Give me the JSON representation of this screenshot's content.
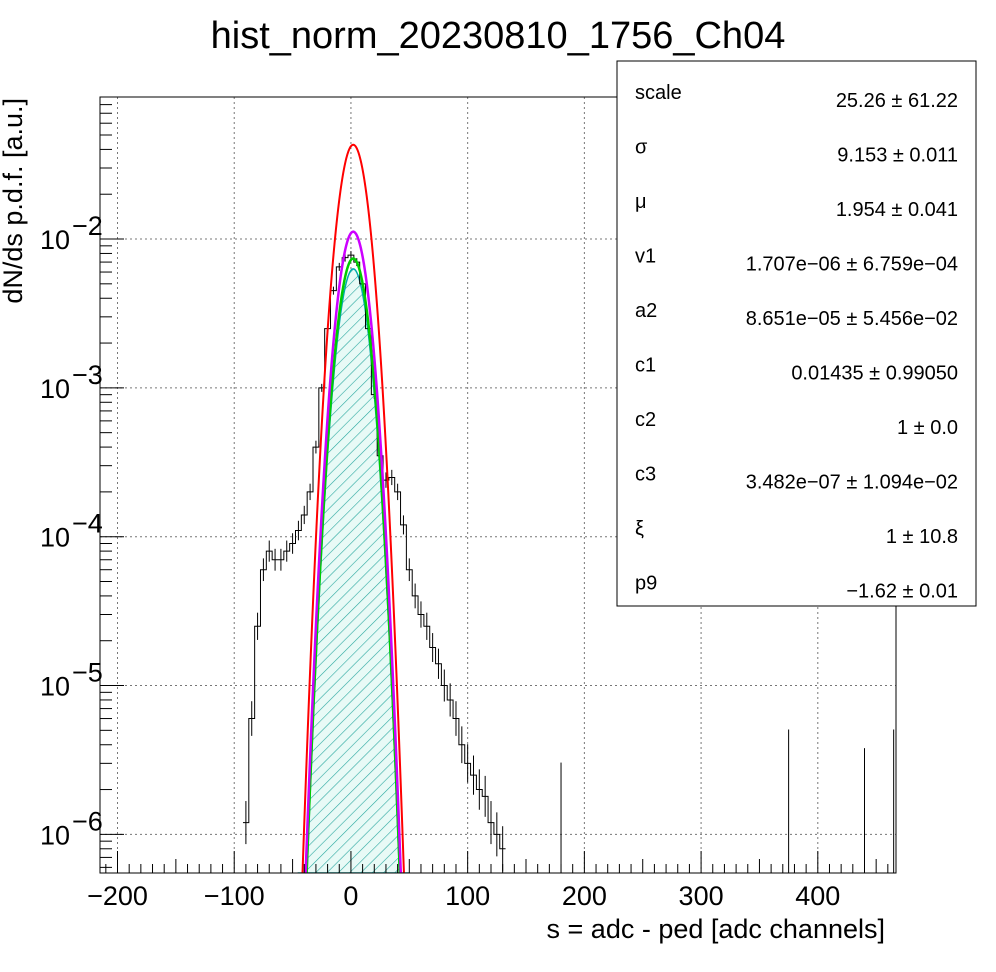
{
  "chart_data": {
    "type": "line",
    "title": "hist_norm_20230810_1756_Ch04",
    "xlabel": "s = adc - ped [adc channels]",
    "ylabel": "dN/ds p.d.f. [a.u.]",
    "xlim": [
      -215,
      467
    ],
    "ylim": [
      5.5e-07,
      0.09
    ],
    "yscale": "log",
    "grid": true,
    "x_ticks": [
      {
        "value": -200,
        "label": "−200"
      },
      {
        "value": -100,
        "label": "−100"
      },
      {
        "value": 0,
        "label": "0"
      },
      {
        "value": 100,
        "label": "100"
      },
      {
        "value": 200,
        "label": "200"
      },
      {
        "value": 300,
        "label": "300"
      },
      {
        "value": 400,
        "label": "400"
      }
    ],
    "y_ticks": [
      {
        "value": 1e-06,
        "base": "10",
        "exp": "−6"
      },
      {
        "value": 1e-05,
        "base": "10",
        "exp": "−5"
      },
      {
        "value": 0.0001,
        "base": "10",
        "exp": "−4"
      },
      {
        "value": 0.001,
        "base": "10",
        "exp": "−3"
      },
      {
        "value": 0.01,
        "base": "10",
        "exp": "−2"
      }
    ],
    "series": [
      {
        "role": "data histogram",
        "color": "#000000",
        "x": [
          -90,
          -85,
          -80,
          -75,
          -70,
          -65,
          -60,
          -55,
          -50,
          -45,
          -40,
          -35,
          -30,
          -25,
          -20,
          -15,
          -10,
          -5,
          0,
          5,
          10,
          15,
          20,
          25,
          30,
          35,
          40,
          45,
          50,
          55,
          60,
          65,
          70,
          75,
          80,
          85,
          90,
          95,
          100,
          105,
          110,
          115,
          120,
          125,
          130
        ],
        "values": [
          1.2e-06,
          6e-06,
          2.5e-05,
          6e-05,
          8e-05,
          7e-05,
          7e-05,
          8e-05,
          9e-05,
          0.00011,
          0.00014,
          0.0002,
          0.0004,
          0.001,
          0.0025,
          0.0045,
          0.0065,
          0.0075,
          0.0078,
          0.007,
          0.005,
          0.0025,
          0.0009,
          0.00035,
          0.00024,
          0.00025,
          0.0002,
          0.00012,
          6e-05,
          4e-05,
          3e-05,
          2.5e-05,
          1.8e-05,
          1.4e-05,
          1e-05,
          8e-06,
          6e-06,
          4e-06,
          3e-06,
          2.5e-06,
          2e-06,
          1.8e-06,
          1.2e-06,
          1e-06,
          8e-07
        ]
      },
      {
        "role": "total fit",
        "color": "#ff0000",
        "peak_x": 1.954,
        "peak_y": 0.043,
        "sigma": 9.153
      },
      {
        "role": "component 1",
        "color": "#cc00ff",
        "peak_x": 1.954,
        "peak_y": 0.0112,
        "sigma": 9.153
      },
      {
        "role": "component 2",
        "color": "#00cc00",
        "peak_x": 1.954,
        "peak_y": 0.0074,
        "sigma": 9.153
      },
      {
        "role": "filled gaussian",
        "color": "#00aaaa",
        "peak_x": 1.954,
        "peak_y": 0.0063,
        "sigma": 9.153
      }
    ],
    "stats_box": [
      {
        "name": "scale",
        "value": "25.26 ± 61.22"
      },
      {
        "name": "σ",
        "value": "9.153 ± 0.011"
      },
      {
        "name": "μ",
        "value": "1.954 ± 0.041"
      },
      {
        "name": "v1",
        "value": "1.707e−06 ± 6.759e−04"
      },
      {
        "name": "a2",
        "value": "8.651e−05 ± 5.456e−02"
      },
      {
        "name": "c1",
        "value": "0.01435 ± 0.99050"
      },
      {
        "name": "c2",
        "value": "1 ± 0.0"
      },
      {
        "name": "c3",
        "value": "3.482e−07 ± 1.094e−02"
      },
      {
        "name": "ξ",
        "value": "1 ± 10.8"
      },
      {
        "name": "p9",
        "value": "−1.62 ± 0.01"
      }
    ],
    "legend_placement": "top-right"
  }
}
